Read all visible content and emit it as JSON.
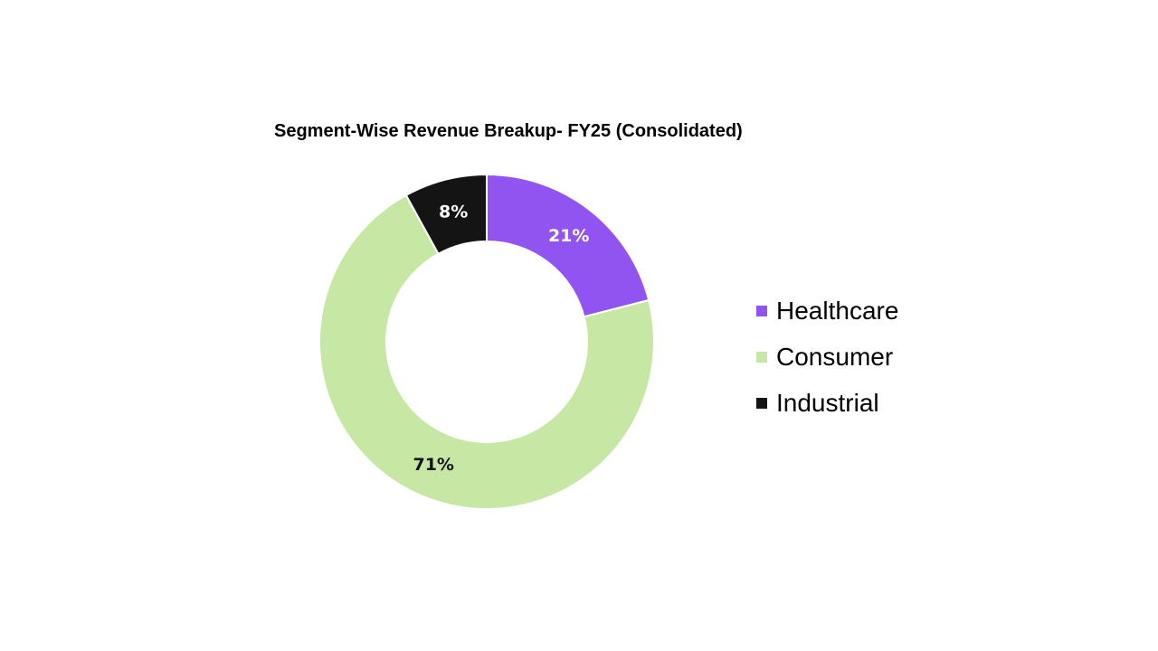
{
  "chart_data": {
    "type": "pie",
    "variant": "donut",
    "title": "Segment-Wise Revenue Breakup- FY25 (Consolidated)",
    "categories": [
      "Healthcare",
      "Consumer",
      "Industrial"
    ],
    "values": [
      21,
      71,
      8
    ],
    "labels": [
      "21%",
      "71%",
      "8%"
    ],
    "colors": [
      "#9254f1",
      "#c7e7a5",
      "#141414"
    ],
    "label_colors": [
      "#ffffff",
      "#141414",
      "#ffffff"
    ],
    "legend_position": "right"
  }
}
